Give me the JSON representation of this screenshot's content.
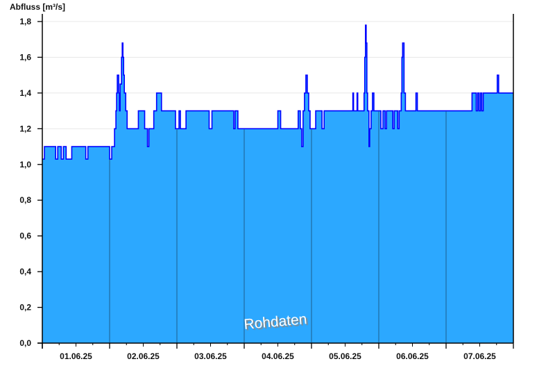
{
  "chart_data": {
    "type": "area",
    "ylabel": "Abfluss [m³/s]",
    "xlabel": "",
    "ylim": [
      0,
      1.8
    ],
    "yticks": [
      "0,0",
      "0,2",
      "0,4",
      "0,6",
      "0,8",
      "1,0",
      "1,2",
      "1,4",
      "1,6",
      "1,8"
    ],
    "xticks": [
      "01.06.25",
      "02.06.25",
      "03.06.25",
      "04.06.25",
      "05.06.25",
      "06.06.25",
      "07.06.25"
    ],
    "xrange": [
      "01.06.25 00:00",
      "08.06.25 00:00"
    ],
    "grid": "horizontal",
    "annotation": "Rohdaten",
    "colors": {
      "fill": "#2ca8ff",
      "line": "#0000ff",
      "day_separator": "#1d5e8c",
      "grid": "#e8e8e8"
    },
    "series": [
      {
        "points": [
          [
            "01.06.25 00:00",
            1.03
          ],
          [
            "01.06.25 00:45",
            1.1
          ],
          [
            "01.06.25 04:45",
            1.03
          ],
          [
            "01.06.25 05:30",
            1.1
          ],
          [
            "01.06.25 06:45",
            1.03
          ],
          [
            "01.06.25 07:30",
            1.1
          ],
          [
            "01.06.25 08:30",
            1.03
          ],
          [
            "01.06.25 10:30",
            1.1
          ],
          [
            "01.06.25 15:30",
            1.03
          ],
          [
            "01.06.25 16:15",
            1.1
          ],
          [
            "02.06.25 00:00",
            1.03
          ],
          [
            "02.06.25 00:45",
            1.1
          ],
          [
            "02.06.25 01:45",
            1.2
          ],
          [
            "02.06.25 02:15",
            1.3
          ],
          [
            "02.06.25 02:30",
            1.4
          ],
          [
            "02.06.25 02:45",
            1.5
          ],
          [
            "02.06.25 03:15",
            1.4
          ],
          [
            "02.06.25 03:30",
            1.3
          ],
          [
            "02.06.25 03:45",
            1.45
          ],
          [
            "02.06.25 04:15",
            1.6
          ],
          [
            "02.06.25 04:30",
            1.68
          ],
          [
            "02.06.25 04:45",
            1.6
          ],
          [
            "02.06.25 05:00",
            1.5
          ],
          [
            "02.06.25 05:15",
            1.4
          ],
          [
            "02.06.25 05:45",
            1.3
          ],
          [
            "02.06.25 06:15",
            1.2
          ],
          [
            "02.06.25 10:15",
            1.3
          ],
          [
            "02.06.25 12:30",
            1.2
          ],
          [
            "02.06.25 13:30",
            1.1
          ],
          [
            "02.06.25 14:00",
            1.2
          ],
          [
            "02.06.25 15:45",
            1.3
          ],
          [
            "02.06.25 16:45",
            1.4
          ],
          [
            "02.06.25 18:30",
            1.3
          ],
          [
            "02.06.25 23:30",
            1.2
          ],
          [
            "03.06.25 00:45",
            1.3
          ],
          [
            "03.06.25 01:15",
            1.2
          ],
          [
            "03.06.25 03:15",
            1.3
          ],
          [
            "03.06.25 11:30",
            1.2
          ],
          [
            "03.06.25 12:30",
            1.3
          ],
          [
            "03.06.25 20:15",
            1.2
          ],
          [
            "03.06.25 20:45",
            1.3
          ],
          [
            "03.06.25 21:45",
            1.2
          ],
          [
            "04.06.25 12:00",
            1.3
          ],
          [
            "04.06.25 13:00",
            1.2
          ],
          [
            "04.06.25 19:15",
            1.3
          ],
          [
            "04.06.25 20:00",
            1.2
          ],
          [
            "04.06.25 20:30",
            1.1
          ],
          [
            "04.06.25 21:00",
            1.3
          ],
          [
            "04.06.25 21:30",
            1.4
          ],
          [
            "04.06.25 22:00",
            1.5
          ],
          [
            "04.06.25 22:30",
            1.4
          ],
          [
            "04.06.25 23:00",
            1.3
          ],
          [
            "04.06.25 23:30",
            1.2
          ],
          [
            "05.06.25 01:30",
            1.3
          ],
          [
            "05.06.25 03:45",
            1.2
          ],
          [
            "05.06.25 04:30",
            1.3
          ],
          [
            "05.06.25 14:45",
            1.4
          ],
          [
            "05.06.25 15:00",
            1.3
          ],
          [
            "05.06.25 16:15",
            1.4
          ],
          [
            "05.06.25 16:30",
            1.3
          ],
          [
            "05.06.25 18:45",
            1.4
          ],
          [
            "05.06.25 19:00",
            1.6
          ],
          [
            "05.06.25 19:15",
            1.78
          ],
          [
            "05.06.25 19:30",
            1.68
          ],
          [
            "05.06.25 19:45",
            1.4
          ],
          [
            "05.06.25 20:00",
            1.3
          ],
          [
            "05.06.25 20:30",
            1.1
          ],
          [
            "05.06.25 20:45",
            1.2
          ],
          [
            "05.06.25 21:15",
            1.3
          ],
          [
            "05.06.25 21:45",
            1.4
          ],
          [
            "05.06.25 22:15",
            1.3
          ],
          [
            "06.06.25 00:45",
            1.2
          ],
          [
            "06.06.25 01:30",
            1.3
          ],
          [
            "06.06.25 02:15",
            1.2
          ],
          [
            "06.06.25 02:45",
            1.3
          ],
          [
            "06.06.25 05:00",
            1.2
          ],
          [
            "06.06.25 05:30",
            1.3
          ],
          [
            "06.06.25 06:45",
            1.2
          ],
          [
            "06.06.25 07:15",
            1.3
          ],
          [
            "06.06.25 08:00",
            1.4
          ],
          [
            "06.06.25 08:15",
            1.6
          ],
          [
            "06.06.25 08:30",
            1.68
          ],
          [
            "06.06.25 09:00",
            1.4
          ],
          [
            "06.06.25 09:30",
            1.3
          ],
          [
            "06.06.25 13:15",
            1.4
          ],
          [
            "06.06.25 13:45",
            1.3
          ],
          [
            "07.06.25 09:15",
            1.4
          ],
          [
            "07.06.25 10:45",
            1.3
          ],
          [
            "07.06.25 11:15",
            1.4
          ],
          [
            "07.06.25 11:45",
            1.3
          ],
          [
            "07.06.25 12:15",
            1.4
          ],
          [
            "07.06.25 12:45",
            1.3
          ],
          [
            "07.06.25 13:15",
            1.4
          ],
          [
            "07.06.25 18:15",
            1.5
          ],
          [
            "07.06.25 18:45",
            1.4
          ],
          [
            "08.06.25 00:00",
            1.4
          ]
        ]
      }
    ]
  }
}
